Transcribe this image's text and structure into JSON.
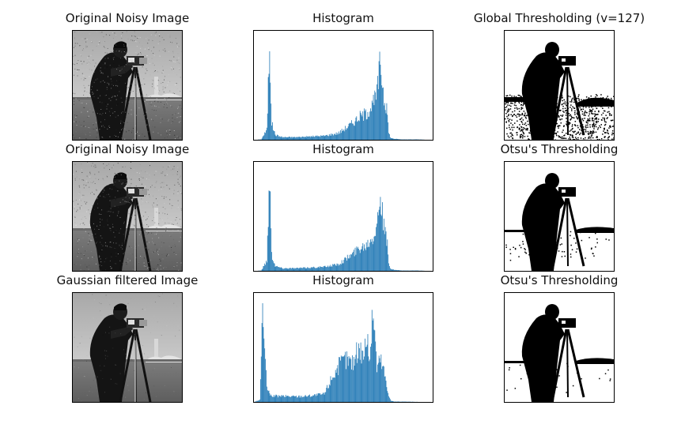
{
  "figure": {
    "rows": [
      {
        "image_title": "Original Noisy Image",
        "image_kind": "noisy-grayscale-photo",
        "hist_title": "Histogram",
        "thresh_title": "Global Thresholding (v=127)",
        "thresh_kind": "noisy-binary"
      },
      {
        "image_title": "Original Noisy Image",
        "image_kind": "noisy-grayscale-photo",
        "hist_title": "Histogram",
        "thresh_title": "Otsu's Thresholding",
        "thresh_kind": "cleaner-binary"
      },
      {
        "image_title": "Gaussian filtered Image",
        "image_kind": "smoothed-grayscale-photo",
        "hist_title": "Histogram",
        "thresh_title": "Otsu's Thresholding",
        "thresh_kind": "clean-binary"
      }
    ]
  },
  "chart_data": [
    {
      "type": "bar",
      "title": "Histogram",
      "x": [
        0,
        10,
        18,
        22,
        25,
        30,
        40,
        60,
        80,
        100,
        120,
        140,
        150,
        160,
        170,
        175,
        180,
        185,
        190,
        192,
        195,
        200,
        210,
        220,
        230,
        255
      ],
      "values": [
        0,
        1,
        30,
        300,
        50,
        15,
        8,
        8,
        10,
        12,
        20,
        50,
        70,
        80,
        110,
        140,
        240,
        130,
        80,
        20,
        5,
        3,
        1,
        1,
        1,
        0
      ],
      "xlim": [
        0,
        255
      ],
      "ylim": [
        0,
        320
      ],
      "color": "#1f77b4",
      "axes_visible": false
    },
    {
      "type": "bar",
      "title": "Histogram",
      "x": [
        0,
        10,
        18,
        22,
        25,
        30,
        40,
        60,
        80,
        100,
        120,
        140,
        150,
        160,
        170,
        175,
        180,
        185,
        190,
        192,
        195,
        200,
        210,
        220,
        230,
        255
      ],
      "values": [
        0,
        1,
        30,
        300,
        50,
        15,
        8,
        8,
        10,
        12,
        20,
        50,
        70,
        80,
        110,
        140,
        240,
        130,
        80,
        20,
        5,
        3,
        1,
        1,
        1,
        0
      ],
      "xlim": [
        0,
        255
      ],
      "ylim": [
        0,
        320
      ],
      "color": "#1f77b4",
      "axes_visible": false
    },
    {
      "type": "bar",
      "title": "Histogram",
      "x": [
        0,
        8,
        12,
        15,
        18,
        22,
        28,
        40,
        60,
        80,
        100,
        110,
        120,
        130,
        140,
        150,
        155,
        160,
        165,
        170,
        175,
        180,
        185,
        190,
        195,
        200,
        255
      ],
      "values": [
        0,
        5,
        250,
        120,
        40,
        18,
        15,
        15,
        14,
        16,
        20,
        60,
        90,
        110,
        100,
        140,
        120,
        160,
        120,
        240,
        90,
        110,
        80,
        30,
        3,
        1,
        0
      ],
      "xlim": [
        0,
        255
      ],
      "ylim": [
        0,
        270
      ],
      "color": "#1f77b4",
      "axes_visible": false
    }
  ]
}
